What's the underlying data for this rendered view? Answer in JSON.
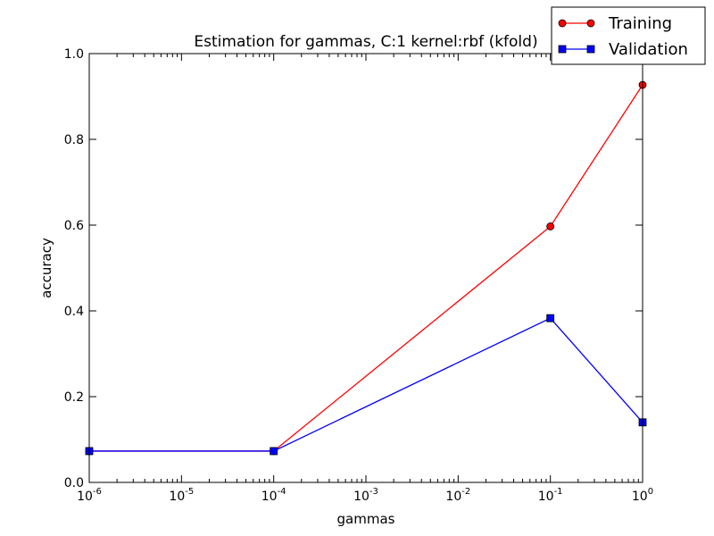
{
  "chart_data": {
    "type": "line",
    "title": "Estimation for gammas, C:1 kernel:rbf (kfold)",
    "xlabel": "gammas",
    "ylabel": "accuracy",
    "xscale": "log",
    "xlim": [
      1e-06,
      1
    ],
    "ylim": [
      0,
      1
    ],
    "x_ticks": [
      {
        "value": 1e-06,
        "base": "10",
        "exp": "-6"
      },
      {
        "value": 1e-05,
        "base": "10",
        "exp": "-5"
      },
      {
        "value": 0.0001,
        "base": "10",
        "exp": "-4"
      },
      {
        "value": 0.001,
        "base": "10",
        "exp": "-3"
      },
      {
        "value": 0.01,
        "base": "10",
        "exp": "-2"
      },
      {
        "value": 0.1,
        "base": "10",
        "exp": "-1"
      },
      {
        "value": 1,
        "base": "10",
        "exp": "0"
      }
    ],
    "y_ticks": [
      {
        "value": 0,
        "label": "0.0"
      },
      {
        "value": 0.2,
        "label": "0.2"
      },
      {
        "value": 0.4,
        "label": "0.4"
      },
      {
        "value": 0.6,
        "label": "0.6"
      },
      {
        "value": 0.8,
        "label": "0.8"
      },
      {
        "value": 1,
        "label": "1.0"
      }
    ],
    "grid": false,
    "legend_position": "top-right",
    "series": [
      {
        "name": "Training",
        "color": "#ff0000",
        "marker": "circle",
        "x": [
          1e-06,
          0.0001,
          0.1,
          1
        ],
        "y": [
          0.073,
          0.073,
          0.597,
          0.927
        ]
      },
      {
        "name": "Validation",
        "color": "#0000ff",
        "marker": "square",
        "x": [
          1e-06,
          0.0001,
          0.1,
          1
        ],
        "y": [
          0.073,
          0.073,
          0.383,
          0.14
        ]
      }
    ]
  }
}
